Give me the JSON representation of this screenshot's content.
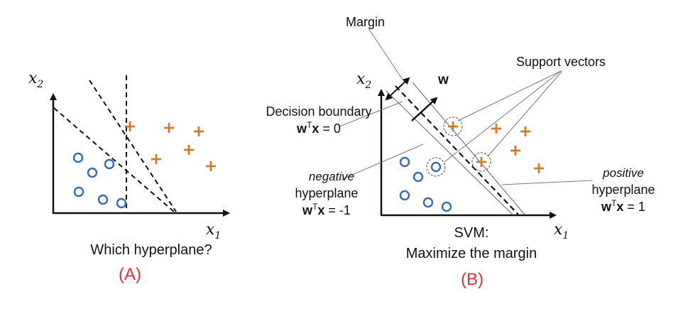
{
  "colors": {
    "circle": "#3a6fb5",
    "plus": "#d07a2a",
    "panel_label": "#e0303a",
    "line": "#111111",
    "margin_line": "#888888"
  },
  "panel_a": {
    "x_label": "x",
    "x_sub": "1",
    "y_label": "x",
    "y_sub": "2",
    "caption": "Which hyperplane?",
    "tag": "(A)"
  },
  "panel_b": {
    "x_label": "x",
    "x_sub": "1",
    "y_label": "x",
    "y_sub": "2",
    "margin_label": "Margin",
    "w_label": "w",
    "support_label": "Support vectors",
    "decision_label": "Decision boundary",
    "decision_eq": {
      "w": "w",
      "t": "T",
      "x": "x",
      "rhs": " = 0"
    },
    "negative_word": "negative",
    "negative_hp": "hyperplane",
    "negative_eq": {
      "w": "w",
      "t": "T",
      "x": "x",
      "rhs": " = -1"
    },
    "positive_word": "positive",
    "positive_hp": "hyperplane",
    "positive_eq": {
      "w": "w",
      "t": "T",
      "x": "x",
      "rhs": " = 1"
    },
    "caption_line1": "SVM:",
    "caption_line2": "Maximize the margin",
    "tag": "(B)"
  }
}
